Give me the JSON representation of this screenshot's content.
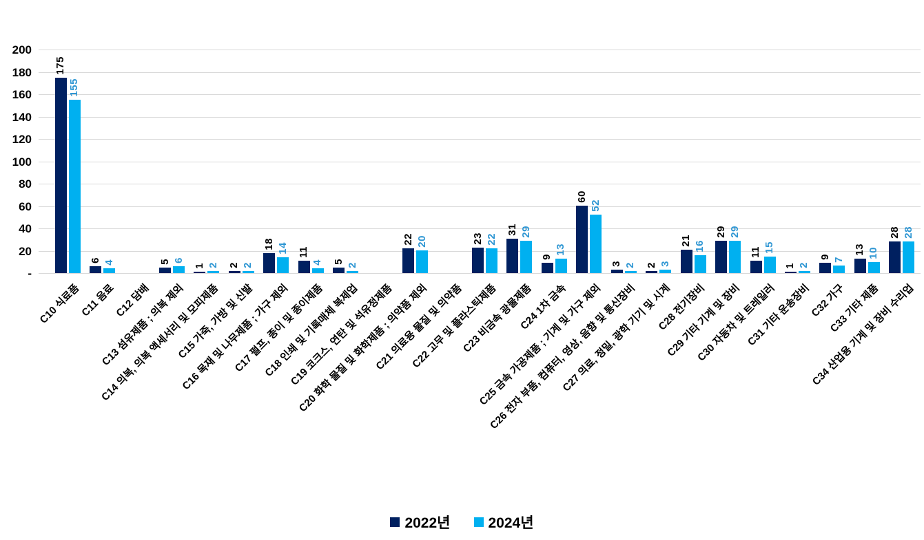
{
  "chart_data": {
    "type": "bar",
    "title": "",
    "xlabel": "",
    "ylabel": "",
    "ylim": [
      0,
      200
    ],
    "y_tick_step": 20,
    "y_tick_labels": [
      "-",
      "20",
      "40",
      "60",
      "80",
      "100",
      "120",
      "140",
      "160",
      "180",
      "200"
    ],
    "grid": true,
    "gridline_color": "#D9D9D9",
    "axis_line_color": "#D9D9D9",
    "background_color": "#FFFFFF",
    "legend_position": "bottom-center",
    "categories": [
      "C10 식료품",
      "C11 음료",
      "C12 담배",
      "C13 섬유제품 ; 의복 제외",
      "C14 의복, 의복 액세서리 및 모피제품",
      "C15 가죽, 가방 및 신발",
      "C16 목재 및 나무제품 ; 가구 제외",
      "C17 펄프, 종이 및 종이제품",
      "C18 인쇄 및 기록매체 복제업",
      "C19 코크스, 연탄 및 석유정제품",
      "C20 화학 물질 및 화학제품 ; 의약품 제외",
      "C21 의료용 물질 및 의약품",
      "C22 고무 및 플라스틱제품",
      "C23 비금속 광물제품",
      "C24 1차 금속",
      "C25 금속 가공제품 ; 기계 및 가구 제외",
      "C26 전자 부품, 컴퓨터, 영상, 음향 및 통신장비",
      "C27 의료, 정밀, 광학 기기 및 시계",
      "C28 전기장비",
      "C29 기타 기계 및 장비",
      "C30 자동차 및 트레일러",
      "C31 기타 운송장비",
      "C32 가구",
      "C33 기타 제품",
      "C34 산업용 기계 및 장비 수리업"
    ],
    "series": [
      {
        "name": "2022년",
        "color": "#002060",
        "label_color": "#000000",
        "values": [
          175,
          6,
          null,
          5,
          1,
          2,
          18,
          11,
          5,
          null,
          22,
          null,
          23,
          31,
          9,
          60,
          3,
          2,
          21,
          29,
          11,
          1,
          9,
          13,
          28
        ]
      },
      {
        "name": "2024년",
        "color": "#00B0F0",
        "label_color": "#2E96D3",
        "values": [
          155,
          4,
          null,
          6,
          2,
          2,
          14,
          4,
          2,
          null,
          20,
          null,
          22,
          29,
          13,
          52,
          2,
          3,
          16,
          29,
          15,
          2,
          7,
          10,
          28
        ]
      }
    ]
  }
}
